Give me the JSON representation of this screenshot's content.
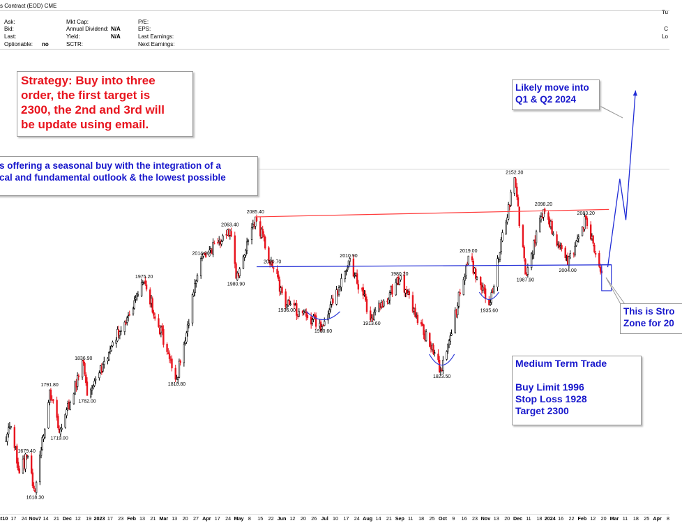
{
  "header": {
    "title": "s Contract (EOD) CME",
    "right_top": "Tu",
    "right_rows": [
      "C",
      "Lo"
    ],
    "fields": [
      {
        "label": "Ask:",
        "value": ""
      },
      {
        "label": "Bid:",
        "value": ""
      },
      {
        "label": "Last:",
        "value": ""
      },
      {
        "label": "Optionable:",
        "value": "no"
      },
      {
        "label": "Mkt Cap:",
        "value": ""
      },
      {
        "label": "Annual Dividend:",
        "value": "N/A"
      },
      {
        "label": "Yield:",
        "value": "N/A"
      },
      {
        "label": "SCTR:",
        "value": ""
      },
      {
        "label": "P/E:",
        "value": ""
      },
      {
        "label": "EPS:",
        "value": ""
      },
      {
        "label": "Last Earnings:",
        "value": ""
      },
      {
        "label": "Next Earnings:",
        "value": ""
      }
    ]
  },
  "notes": {
    "strategy": [
      "Strategy: Buy into three",
      "order, the first target is",
      "2300, the 2nd and 3rd will",
      "be update using email."
    ],
    "seasonal": [
      "s offering a seasonal buy with the integration of a",
      "cal and fundamental outlook & the lowest possible"
    ],
    "likely_move": [
      "Likely move into",
      "Q1 & Q2 2024"
    ],
    "strong_zone": [
      "This is Stro",
      "Zone for 20"
    ],
    "trade": {
      "title": "Medium Term Trade",
      "buy": "Buy Limit 1996",
      "stop": "Stop Loss 1928",
      "target": "Target 2300"
    }
  },
  "chart_data": {
    "type": "candlestick",
    "title": "",
    "xlabel": "",
    "ylabel": "",
    "y_axis_visible": false,
    "grid": false,
    "colors": {
      "up": "#000000",
      "down": "#e8141e",
      "resistance": "#ff3b3b",
      "support": "#1f2bd6",
      "projection": "#1f2bd6",
      "arcs": "#2e3bd8"
    },
    "x_ticks": [
      "ct10",
      "17",
      "24",
      "Nov7",
      "14",
      "21",
      "Dec",
      "12",
      "19",
      "2023",
      "17",
      "23",
      "Feb",
      "13",
      "21",
      "Mar",
      "13",
      "20",
      "27",
      "Apr",
      "17",
      "24",
      "May",
      "8",
      "15",
      "22",
      "Jun",
      "12",
      "20",
      "26",
      "Jul",
      "10",
      "17",
      "24",
      "Aug",
      "14",
      "21",
      "Sep",
      "11",
      "18",
      "25",
      "Oct",
      "9",
      "16",
      "23",
      "Nov",
      "13",
      "20",
      "Dec",
      "11",
      "18",
      "2024",
      "16",
      "22",
      "Feb",
      "12",
      "20",
      "Mar",
      "11",
      "18",
      "25",
      "Apr",
      "8"
    ],
    "price_labels": [
      {
        "value": 1618.3,
        "text": "1618.30",
        "pos": "below"
      },
      {
        "value": 1679.4,
        "text": "1679.40",
        "pos": "above"
      },
      {
        "value": 1791.8,
        "text": "1791.80",
        "pos": "above"
      },
      {
        "value": 1719.0,
        "text": "1719.00",
        "pos": "below"
      },
      {
        "value": 1836.9,
        "text": "1836.90",
        "pos": "above"
      },
      {
        "value": 1782.0,
        "text": "1782.00",
        "pos": "below"
      },
      {
        "value": 1975.2,
        "text": "1975.20",
        "pos": "above"
      },
      {
        "value": 1810.8,
        "text": "1810.80",
        "pos": "below"
      },
      {
        "value": 2014.9,
        "text": "2014.90",
        "pos": "above"
      },
      {
        "value": 2063.4,
        "text": "2063.40",
        "pos": "above"
      },
      {
        "value": 1980.9,
        "text": "1980.90",
        "pos": "below"
      },
      {
        "value": 2085.4,
        "text": "2085.40",
        "pos": "above"
      },
      {
        "value": 2000.7,
        "text": "2000.70",
        "pos": "above"
      },
      {
        "value": 1936.0,
        "text": "1936.00",
        "pos": "below"
      },
      {
        "value": 1900.6,
        "text": "1900.60",
        "pos": "below"
      },
      {
        "value": 2010.9,
        "text": "2010.90",
        "pos": "above"
      },
      {
        "value": 1980.2,
        "text": "1980.20",
        "pos": "above"
      },
      {
        "value": 1913.6,
        "text": "1913.60",
        "pos": "below"
      },
      {
        "value": 1823.5,
        "text": "1823.50",
        "pos": "below"
      },
      {
        "value": 2019.0,
        "text": "2019.00",
        "pos": "above"
      },
      {
        "value": 1935.6,
        "text": "1935.60",
        "pos": "below"
      },
      {
        "value": 2152.3,
        "text": "2152.30",
        "pos": "above"
      },
      {
        "value": 1987.9,
        "text": "1987.90",
        "pos": "below"
      },
      {
        "value": 2098.2,
        "text": "2098.20",
        "pos": "above"
      },
      {
        "value": 2083.2,
        "text": "2083.20",
        "pos": "above"
      },
      {
        "value": 2004.0,
        "text": "2004.00",
        "pos": "below"
      }
    ],
    "swings": [
      {
        "date": "2022-10-10",
        "price": 1705
      },
      {
        "date": "2022-10-14",
        "price": 1730
      },
      {
        "date": "2022-10-21",
        "price": 1650
      },
      {
        "date": "2022-10-27",
        "price": 1679.4
      },
      {
        "date": "2022-11-03",
        "price": 1618.3
      },
      {
        "date": "2022-11-15",
        "price": 1791.8
      },
      {
        "date": "2022-11-23",
        "price": 1719
      },
      {
        "date": "2022-12-13",
        "price": 1836.9
      },
      {
        "date": "2022-12-16",
        "price": 1782
      },
      {
        "date": "2023-02-01",
        "price": 1975.2
      },
      {
        "date": "2023-02-28",
        "price": 1810.8
      },
      {
        "date": "2023-03-20",
        "price": 2014.9
      },
      {
        "date": "2023-04-13",
        "price": 2063.4
      },
      {
        "date": "2023-04-18",
        "price": 1980.9
      },
      {
        "date": "2023-05-04",
        "price": 2085.4
      },
      {
        "date": "2023-05-18",
        "price": 2000.7
      },
      {
        "date": "2023-05-30",
        "price": 1936
      },
      {
        "date": "2023-06-29",
        "price": 1900.6
      },
      {
        "date": "2023-07-20",
        "price": 2010.9
      },
      {
        "date": "2023-08-08",
        "price": 1913.6
      },
      {
        "date": "2023-08-31",
        "price": 1980.2
      },
      {
        "date": "2023-10-05",
        "price": 1823.5
      },
      {
        "date": "2023-10-27",
        "price": 2019
      },
      {
        "date": "2023-11-13",
        "price": 1935.6
      },
      {
        "date": "2023-12-04",
        "price": 2152.3
      },
      {
        "date": "2023-12-13",
        "price": 1987.9
      },
      {
        "date": "2023-12-28",
        "price": 2098.2
      },
      {
        "date": "2024-01-17",
        "price": 2004
      },
      {
        "date": "2024-02-01",
        "price": 2083.2
      },
      {
        "date": "2024-02-14",
        "price": 1990
      }
    ],
    "resistance_line": {
      "from": {
        "date": "2023-05-04",
        "price": 2085.4
      },
      "to": {
        "date": "2024-02-20",
        "price": 2098
      }
    },
    "support_line": {
      "from": {
        "date": "2023-05-05",
        "price": 2000.7
      },
      "to": {
        "date": "2024-02-22",
        "price": 2004
      }
    },
    "buy_zone": {
      "from_date": "2024-02-14",
      "to_date": "2024-02-22",
      "price_high": 2004,
      "price_low": 1960
    },
    "projection": [
      {
        "date": "2024-02-19",
        "price": 2000
      },
      {
        "date": "2024-02-29",
        "price": 2150
      },
      {
        "date": "2024-03-05",
        "price": 2080
      },
      {
        "date": "2024-03-13",
        "price": 2300
      }
    ]
  }
}
